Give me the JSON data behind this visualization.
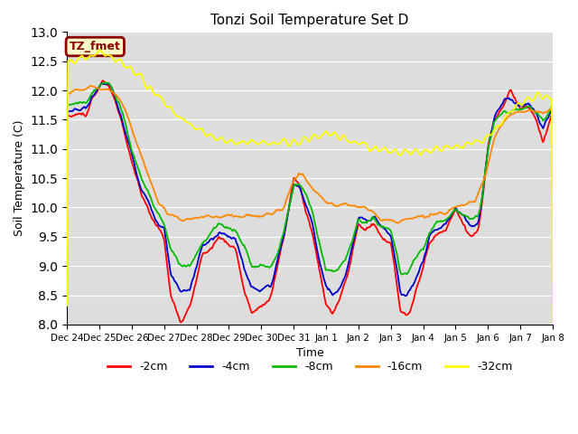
{
  "title": "Tonzi Soil Temperature Set D",
  "xlabel": "Time",
  "ylabel": "Soil Temperature (C)",
  "ylim": [
    8.0,
    13.0
  ],
  "yticks": [
    8.0,
    8.5,
    9.0,
    9.5,
    10.0,
    10.5,
    11.0,
    11.5,
    12.0,
    12.5,
    13.0
  ],
  "xtick_labels": [
    "Dec 24",
    "Dec 25",
    "Dec 26",
    "Dec 27",
    "Dec 28",
    "Dec 29",
    "Dec 30",
    "Dec 31",
    "Jan 1",
    "Jan 2",
    "Jan 3",
    "Jan 4",
    "Jan 5",
    "Jan 6",
    "Jan 7",
    "Jan 8"
  ],
  "legend_label": "TZ_fmet",
  "legend_box_color": "#ffffcc",
  "legend_box_edge": "#8B0000",
  "legend_text_color": "#8B0000",
  "bg_color": "#dddddd",
  "grid_color": "#ffffff",
  "line_colors": {
    "-2cm": "#ff0000",
    "-4cm": "#0000cc",
    "-8cm": "#00bb00",
    "-16cm": "#ff8800",
    "-32cm": "#ffff00"
  },
  "t2_keypoints": [
    0.0,
    11.55,
    0.3,
    11.58,
    0.6,
    11.6,
    0.9,
    11.95,
    1.1,
    12.15,
    1.3,
    12.1,
    1.5,
    11.8,
    1.8,
    11.2,
    2.0,
    10.8,
    2.3,
    10.2,
    2.5,
    10.0,
    2.7,
    9.75,
    3.0,
    9.5,
    3.2,
    8.5,
    3.5,
    8.05,
    3.8,
    8.25,
    4.0,
    8.8,
    4.2,
    9.2,
    4.5,
    9.3,
    4.7,
    9.5,
    5.0,
    9.4,
    5.2,
    9.3,
    5.5,
    8.5,
    5.7,
    8.2,
    6.0,
    8.3,
    6.3,
    8.5,
    6.5,
    9.0,
    6.7,
    9.5,
    7.0,
    10.5,
    7.2,
    10.4,
    7.4,
    9.9,
    7.6,
    9.5,
    7.8,
    8.9,
    8.0,
    8.35,
    8.2,
    8.2,
    8.4,
    8.4,
    8.6,
    8.7,
    8.8,
    9.2,
    9.0,
    9.7,
    9.2,
    9.6,
    9.5,
    9.7,
    9.7,
    9.5,
    10.0,
    9.4,
    10.2,
    8.6,
    10.3,
    8.2,
    10.5,
    8.15,
    10.7,
    8.4,
    11.0,
    9.0,
    11.2,
    9.4,
    11.4,
    9.55,
    11.7,
    9.6,
    12.0,
    10.0,
    12.2,
    9.75,
    12.5,
    9.5,
    12.7,
    9.6,
    12.8,
    10.0,
    13.0,
    11.0,
    13.2,
    11.5,
    13.5,
    11.8,
    13.7,
    12.0,
    14.0,
    11.7,
    14.3,
    11.7,
    14.5,
    11.5,
    14.7,
    11.1,
    15.0,
    11.65
  ],
  "t4_keypoints": [
    0.0,
    11.65,
    0.3,
    11.68,
    0.6,
    11.7,
    0.9,
    12.0,
    1.1,
    12.15,
    1.3,
    12.1,
    1.5,
    11.85,
    1.8,
    11.3,
    2.0,
    10.9,
    2.3,
    10.3,
    2.5,
    10.1,
    2.7,
    9.85,
    3.0,
    9.65,
    3.2,
    8.9,
    3.5,
    8.55,
    3.8,
    8.6,
    4.0,
    9.0,
    4.2,
    9.35,
    4.5,
    9.45,
    4.7,
    9.55,
    5.0,
    9.5,
    5.2,
    9.45,
    5.5,
    8.9,
    5.7,
    8.65,
    6.0,
    8.6,
    6.3,
    8.65,
    6.5,
    9.1,
    6.7,
    9.55,
    7.0,
    10.4,
    7.2,
    10.35,
    7.4,
    10.0,
    7.6,
    9.65,
    7.8,
    9.1,
    8.0,
    8.65,
    8.2,
    8.5,
    8.4,
    8.6,
    8.6,
    8.85,
    8.8,
    9.3,
    9.0,
    9.8,
    9.2,
    9.75,
    9.5,
    9.8,
    9.7,
    9.65,
    10.0,
    9.55,
    10.2,
    8.9,
    10.3,
    8.5,
    10.5,
    8.5,
    10.7,
    8.7,
    11.0,
    9.1,
    11.2,
    9.5,
    11.4,
    9.65,
    11.7,
    9.7,
    12.0,
    10.0,
    12.2,
    9.85,
    12.5,
    9.7,
    12.7,
    9.75,
    12.8,
    10.1,
    13.0,
    11.0,
    13.2,
    11.55,
    13.5,
    11.85,
    13.7,
    11.85,
    14.0,
    11.75,
    14.3,
    11.75,
    14.5,
    11.6,
    14.7,
    11.35,
    15.0,
    11.7
  ],
  "t8_keypoints": [
    0.0,
    11.75,
    0.3,
    11.78,
    0.6,
    11.8,
    0.9,
    12.05,
    1.1,
    12.15,
    1.3,
    12.1,
    1.5,
    11.9,
    1.8,
    11.5,
    2.0,
    11.0,
    2.3,
    10.5,
    2.5,
    10.3,
    2.7,
    10.0,
    3.0,
    9.7,
    3.2,
    9.3,
    3.5,
    9.0,
    3.8,
    9.0,
    4.0,
    9.2,
    4.2,
    9.4,
    4.5,
    9.6,
    4.7,
    9.7,
    5.0,
    9.65,
    5.2,
    9.6,
    5.5,
    9.3,
    5.7,
    9.0,
    6.0,
    9.0,
    6.3,
    9.0,
    6.5,
    9.2,
    6.7,
    9.6,
    7.0,
    10.4,
    7.2,
    10.4,
    7.4,
    10.2,
    7.6,
    9.9,
    7.8,
    9.35,
    8.0,
    8.9,
    8.2,
    8.9,
    8.4,
    9.0,
    8.6,
    9.1,
    8.8,
    9.4,
    9.0,
    9.8,
    9.2,
    9.75,
    9.5,
    9.8,
    9.7,
    9.65,
    10.0,
    9.6,
    10.2,
    9.2,
    10.3,
    8.9,
    10.5,
    8.9,
    10.7,
    9.1,
    11.0,
    9.3,
    11.2,
    9.6,
    11.4,
    9.75,
    11.7,
    9.8,
    12.0,
    10.0,
    12.2,
    9.9,
    12.5,
    9.8,
    12.7,
    9.85,
    12.8,
    10.1,
    13.0,
    11.0,
    13.2,
    11.5,
    13.5,
    11.65,
    13.7,
    11.65,
    14.0,
    11.65,
    14.3,
    11.7,
    14.5,
    11.6,
    14.7,
    11.45,
    15.0,
    11.75
  ],
  "t16_keypoints": [
    0.0,
    11.95,
    0.2,
    11.98,
    0.4,
    12.0,
    0.7,
    12.05,
    1.0,
    12.05,
    1.3,
    12.0,
    1.6,
    11.9,
    1.9,
    11.5,
    2.2,
    11.05,
    2.5,
    10.55,
    2.8,
    10.15,
    3.1,
    9.9,
    3.4,
    9.85,
    3.7,
    9.8,
    4.0,
    9.8,
    4.3,
    9.85,
    4.6,
    9.85,
    4.9,
    9.85,
    5.2,
    9.85,
    5.5,
    9.85,
    5.8,
    9.85,
    6.1,
    9.85,
    6.4,
    9.9,
    6.7,
    10.0,
    7.0,
    10.5,
    7.15,
    10.6,
    7.3,
    10.55,
    7.5,
    10.4,
    7.8,
    10.2,
    8.0,
    10.1,
    8.3,
    10.05,
    8.6,
    10.05,
    8.9,
    10.0,
    9.1,
    10.0,
    9.4,
    9.95,
    9.7,
    9.8,
    10.0,
    9.75,
    10.2,
    9.75,
    10.5,
    9.8,
    10.8,
    9.85,
    11.1,
    9.85,
    11.4,
    9.9,
    11.7,
    9.9,
    12.0,
    10.0,
    12.3,
    10.05,
    12.6,
    10.1,
    12.9,
    10.5,
    13.2,
    11.2,
    13.5,
    11.5,
    13.8,
    11.6,
    14.1,
    11.65,
    14.4,
    11.65,
    14.7,
    11.6,
    15.0,
    11.7
  ],
  "t32_keypoints": [
    0.0,
    12.5,
    0.3,
    12.52,
    0.7,
    12.55,
    1.0,
    12.65,
    1.3,
    12.6,
    1.6,
    12.5,
    2.0,
    12.35,
    2.5,
    12.1,
    3.0,
    11.8,
    3.5,
    11.55,
    4.0,
    11.35,
    4.5,
    11.2,
    5.0,
    11.15,
    5.5,
    11.12,
    6.0,
    11.1,
    6.5,
    11.1,
    7.0,
    11.1,
    7.5,
    11.2,
    8.0,
    11.25,
    8.5,
    11.2,
    9.0,
    11.1,
    9.5,
    11.0,
    10.0,
    10.97,
    10.5,
    10.95,
    11.0,
    10.95,
    11.5,
    11.0,
    12.0,
    11.05,
    12.5,
    11.1,
    13.0,
    11.2,
    13.5,
    11.55,
    14.0,
    11.8,
    14.3,
    11.85,
    14.5,
    11.9,
    14.7,
    11.88,
    15.0,
    11.9
  ]
}
